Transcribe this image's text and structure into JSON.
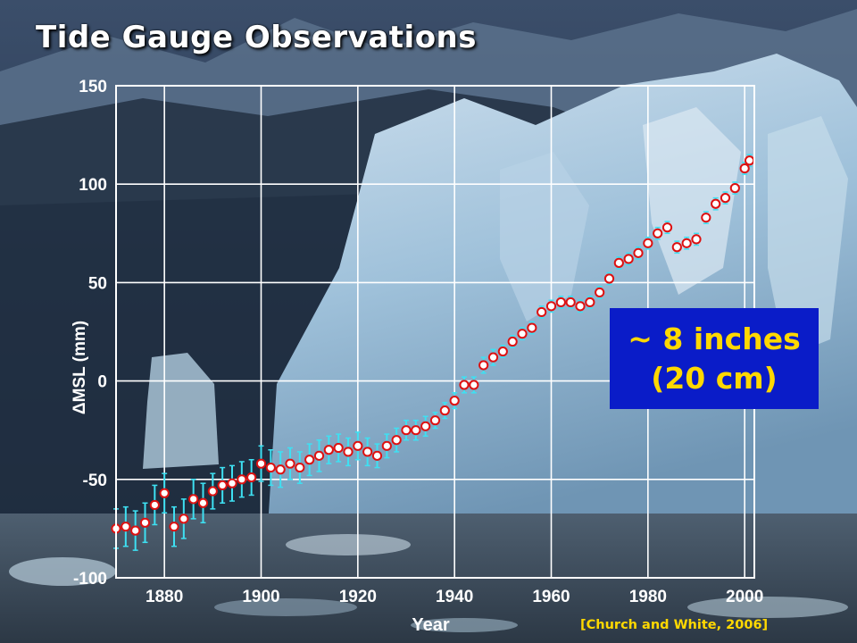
{
  "title": "Tide Gauge Observations",
  "callout": {
    "line1": "~ 8 inches",
    "line2": "(20 cm)"
  },
  "citation": "[Church and White, 2006]",
  "colors": {
    "title": "#ffffff",
    "axis_text": "#ffffff",
    "marker_fill": "#ffffff",
    "marker_edge": "#dd1111",
    "error_bar": "#3ee0f2",
    "callout_bg": "#0a1cc8",
    "callout_text": "#ffd800",
    "citation": "#ffd800"
  },
  "chart_data": {
    "type": "scatter",
    "title": "Tide Gauge Observations",
    "xlabel": "Year",
    "ylabel": "ΔMSL (mm)",
    "xlim": [
      1870,
      2002
    ],
    "ylim": [
      -100,
      150
    ],
    "x_ticks": [
      1880,
      1900,
      1920,
      1940,
      1960,
      1980,
      2000
    ],
    "y_ticks": [
      150,
      100,
      50,
      0,
      -50,
      -100
    ],
    "grid": true,
    "series": [
      {
        "x": [
          1870,
          1872,
          1874,
          1876,
          1878,
          1880,
          1882,
          1884,
          1886,
          1888,
          1890,
          1892,
          1894,
          1896,
          1898,
          1900,
          1902,
          1904,
          1906,
          1908,
          1910,
          1912,
          1914,
          1916,
          1918,
          1920,
          1922,
          1924,
          1926,
          1928,
          1930,
          1932,
          1934,
          1936,
          1938,
          1940,
          1942,
          1944,
          1946,
          1948,
          1950,
          1952,
          1954,
          1956,
          1958,
          1960,
          1962,
          1964,
          1966,
          1968,
          1970,
          1972,
          1974,
          1976,
          1978,
          1980,
          1982,
          1984,
          1986,
          1988,
          1990,
          1992,
          1994,
          1996,
          1998,
          2000,
          2001
        ],
        "y": [
          -75,
          -74,
          -76,
          -72,
          -63,
          -57,
          -74,
          -70,
          -60,
          -62,
          -56,
          -53,
          -52,
          -50,
          -49,
          -42,
          -44,
          -45,
          -42,
          -44,
          -40,
          -38,
          -35,
          -34,
          -36,
          -33,
          -36,
          -38,
          -33,
          -30,
          -25,
          -25,
          -23,
          -20,
          -15,
          -10,
          -2,
          -2,
          8,
          12,
          15,
          20,
          24,
          27,
          35,
          38,
          40,
          40,
          38,
          40,
          45,
          52,
          60,
          62,
          65,
          70,
          75,
          78,
          68,
          70,
          72,
          83,
          90,
          93,
          98,
          108,
          112
        ],
        "error": [
          10,
          10,
          10,
          10,
          10,
          10,
          10,
          10,
          10,
          10,
          9,
          9,
          9,
          9,
          9,
          9,
          9,
          9,
          8,
          8,
          8,
          8,
          7,
          7,
          7,
          7,
          7,
          6,
          6,
          6,
          5,
          5,
          5,
          4,
          4,
          4,
          4,
          4,
          4,
          4,
          3,
          3,
          3,
          3,
          3,
          3,
          3,
          3,
          3,
          3,
          3,
          3,
          3,
          3,
          3,
          3,
          3,
          3,
          3,
          3,
          3,
          3,
          3,
          3,
          3,
          3,
          3
        ]
      }
    ]
  }
}
